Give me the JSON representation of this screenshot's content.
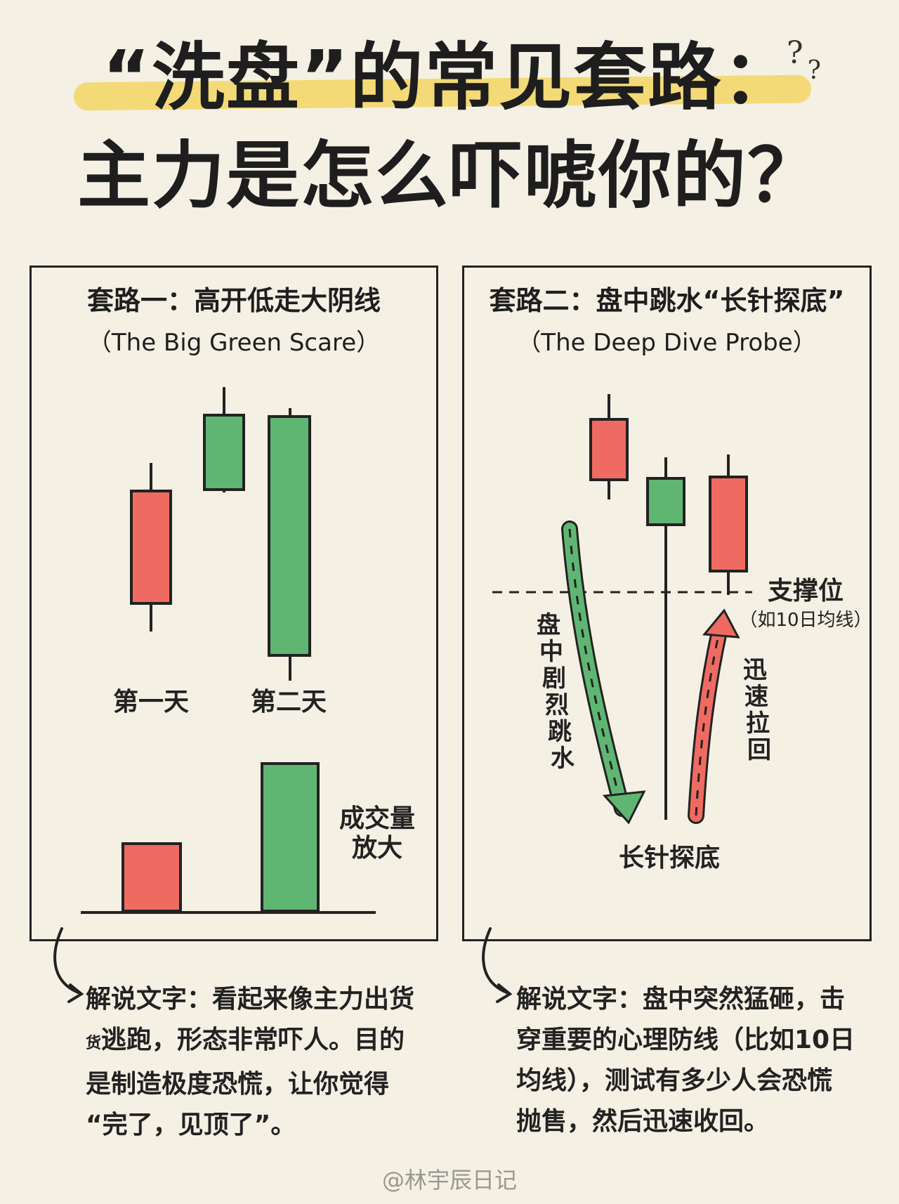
{
  "title": {
    "line1": "“洗盘”的常见套路：",
    "line2": "主力是怎么吓唬你的？",
    "decoration": "question-marks"
  },
  "colors": {
    "red": "#ef6b62",
    "green": "#5fb672",
    "highlight": "#f3d76a",
    "outline": "#222222"
  },
  "panels": [
    {
      "title": "套路一：高开低走大阴线",
      "subtitle": "（The Big Green Scare）",
      "day_labels": [
        "第一天",
        "第二天"
      ],
      "volume_label": [
        "成交量",
        "放大"
      ],
      "caption": {
        "label": "解说文字：",
        "lines": [
          "看起来像主力出货",
          "逃跑，形态非常吓人。目的",
          "是制造极度恐慌，让你觉得",
          "“完了，见顶了”。"
        ],
        "small_prefix": "货"
      }
    },
    {
      "title": "套路二：盘中跳水“长针探底”",
      "subtitle": "（The Deep Dive Probe）",
      "support_label": "支撑位",
      "support_note": "（如10日均线）",
      "dive_label": [
        "盘",
        "中",
        "剧",
        "烈",
        "跳",
        "水"
      ],
      "rally_label": [
        "迅",
        "速",
        "拉",
        "回"
      ],
      "probe_label": "长针探底",
      "caption": {
        "label": "解说文字：",
        "lines": [
          "盘中突然猛砸，击",
          "穿重要的心理防线（比如10日",
          "均线），测试有多少人会恐慌",
          "抛售，然后迅速收回。"
        ]
      }
    }
  ],
  "footer": "@林宇辰日记"
}
